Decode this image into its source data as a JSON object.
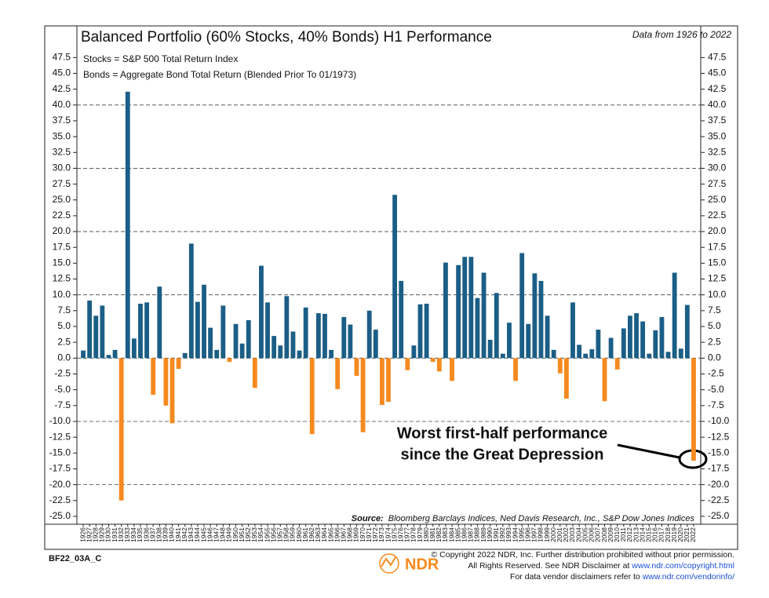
{
  "chart_data": {
    "type": "bar",
    "title": "Balanced Portfolio (60% Stocks, 40% Bonds) H1 Performance",
    "subtitle": "Data from 1926 to 2022",
    "notes": [
      "Stocks = S&P 500 Total Return Index",
      "Bonds = Aggregate Bond Total Return (Blended Prior To 01/1973)"
    ],
    "annotation": [
      "Worst first-half performance",
      "since the Great Depression"
    ],
    "source_label": "Source:",
    "source": "Bloomberg Barclays Indices, Ned Davis Research, Inc., S&P Dow Jones Indices",
    "footer": {
      "code": "BF22_03A_C",
      "logo": "NDR",
      "copyright": "© Copyright 2022 NDR, Inc. Further distribution prohibited without prior permission.",
      "rights": "All Rights Reserved. See NDR Disclaimer at ",
      "rights_link": "www.ndr.com/copyright.html",
      "vendor": "For data vendor disclaimers refer to ",
      "vendor_link": "www.ndr.com/vendorinfo/"
    },
    "positive_color": "#1b5e86",
    "negative_color": "#f58a1f",
    "grid": true,
    "ylim": [
      -26.25,
      52.5
    ],
    "yticks": [
      47.5,
      {
        "value": 45,
        "label": "45.0"
      },
      42.5,
      {
        "value": 40,
        "label": "40.0"
      },
      37.5,
      {
        "value": 35,
        "label": "35.0"
      },
      32.5,
      {
        "value": 30,
        "label": "30.0"
      },
      27.5,
      {
        "value": 25,
        "label": "25.0"
      },
      22.5,
      {
        "value": 20,
        "label": "20.0"
      },
      17.5,
      {
        "value": 15,
        "label": "15.0"
      },
      12.5,
      {
        "value": 10,
        "label": "10.0"
      },
      7.5,
      {
        "value": 5,
        "label": "5.0"
      },
      2.5,
      {
        "value": 0,
        "label": "0.0"
      },
      -2.5,
      {
        "value": -5,
        "label": "-5.0"
      },
      -7.5,
      {
        "value": -10,
        "label": "-10.0"
      },
      -12.5,
      {
        "value": -15,
        "label": "-15.0"
      },
      -17.5,
      {
        "value": -20,
        "label": "-20.0"
      },
      -22.5,
      {
        "value": -25,
        "label": "-25.0"
      }
    ],
    "categories": [
      "1926",
      "1927",
      "1928",
      "1929",
      "1930",
      "1931",
      "1932",
      "1933",
      "1934",
      "1935",
      "1936",
      "1937",
      "1938",
      "1939",
      "1940",
      "1941",
      "1942",
      "1943",
      "1944",
      "1945",
      "1946",
      "1947",
      "1948",
      "1949",
      "1950",
      "1951",
      "1952",
      "1953",
      "1954",
      "1955",
      "1956",
      "1957",
      "1958",
      "1959",
      "1960",
      "1961",
      "1962",
      "1963",
      "1964",
      "1965",
      "1966",
      "1967",
      "1968",
      "1969",
      "1970",
      "1971",
      "1972",
      "1973",
      "1974",
      "1975",
      "1976",
      "1977",
      "1978",
      "1979",
      "1980",
      "1981",
      "1982",
      "1983",
      "1984",
      "1985",
      "1986",
      "1987",
      "1988",
      "1989",
      "1990",
      "1991",
      "1992",
      "1993",
      "1994",
      "1995",
      "1996",
      "1997",
      "1998",
      "1999",
      "2000",
      "2001",
      "2002",
      "2003",
      "2004",
      "2005",
      "2006",
      "2007",
      "2008",
      "2009",
      "2010",
      "2011",
      "2012",
      "2013",
      "2014",
      "2015",
      "2016",
      "2017",
      "2018",
      "2019",
      "2020",
      "2021",
      "2022"
    ],
    "values": [
      1.2,
      9.1,
      6.7,
      8.3,
      0.5,
      1.3,
      -22.5,
      42.1,
      3.1,
      8.6,
      8.8,
      -5.8,
      11.3,
      -7.5,
      -10.3,
      -1.7,
      0.8,
      18.1,
      8.9,
      11.6,
      4.8,
      1.3,
      8.3,
      -0.6,
      5.4,
      2.3,
      6.0,
      -4.7,
      14.6,
      8.8,
      3.5,
      2.0,
      9.8,
      4.2,
      1.2,
      8.0,
      -12.0,
      7.1,
      7.0,
      1.3,
      -4.9,
      6.5,
      5.3,
      -2.8,
      -11.7,
      7.5,
      4.5,
      -7.4,
      -6.9,
      25.8,
      12.2,
      -1.9,
      2.0,
      8.5,
      8.6,
      -0.6,
      -2.1,
      15.1,
      -3.6,
      14.7,
      16.0,
      16.0,
      9.5,
      13.5,
      2.9,
      10.3,
      0.7,
      5.6,
      -3.6,
      16.6,
      5.4,
      13.4,
      12.2,
      6.7,
      1.3,
      -2.4,
      -6.4,
      8.8,
      2.1,
      0.7,
      1.4,
      4.5,
      -6.8,
      3.2,
      -1.8,
      4.7,
      6.7,
      7.1,
      5.8,
      0.7,
      4.4,
      6.5,
      1.0,
      13.5,
      1.5,
      8.4,
      -16.2
    ]
  }
}
